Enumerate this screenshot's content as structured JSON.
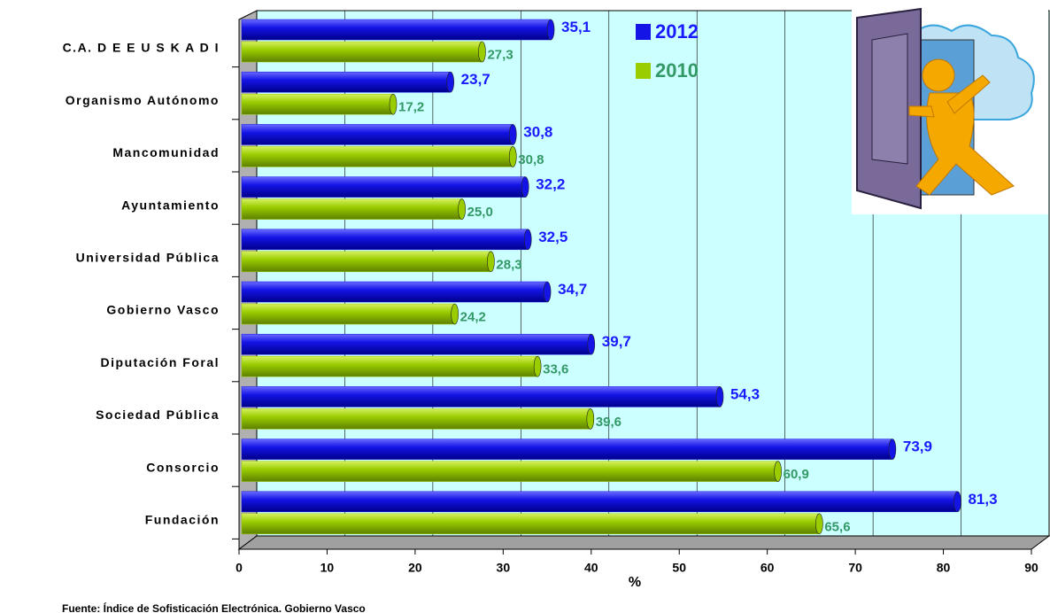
{
  "chart_data": {
    "type": "bar",
    "orientation": "horizontal",
    "categories": [
      "C.A. D E  E U S K A D I",
      "Organismo Autónomo",
      "Mancomunidad",
      "Ayuntamiento",
      "Universidad Pública",
      "Gobierno Vasco",
      "Diputación Foral",
      "Sociedad Pública",
      "Consorcio",
      "Fundación"
    ],
    "series": [
      {
        "name": "2012",
        "color": "#1414e6",
        "label_color": "#1a1aff",
        "values": [
          35.1,
          23.7,
          30.8,
          32.2,
          32.5,
          34.7,
          39.7,
          54.3,
          73.9,
          81.3
        ],
        "value_labels": [
          "35,1",
          "23,7",
          "30,8",
          "32,2",
          "32,5",
          "34,7",
          "39,7",
          "54,3",
          "73,9",
          "81,3"
        ]
      },
      {
        "name": "2010",
        "color": "#9acd00",
        "label_color": "#339966",
        "values": [
          27.3,
          17.2,
          30.8,
          25.0,
          28.3,
          24.2,
          33.6,
          39.6,
          60.9,
          65.6
        ],
        "value_labels": [
          "27,3",
          "17,2",
          "30,8",
          "25,0",
          "28,3",
          "24,2",
          "33,6",
          "39,6",
          "60,9",
          "65,6"
        ]
      }
    ],
    "xlim": [
      0,
      90
    ],
    "xticks": [
      0,
      10,
      20,
      30,
      40,
      50,
      60,
      70,
      80,
      90
    ],
    "grid": true,
    "xlabel": "%",
    "source": "Fuente: Índice de Sofisticación Electrónica. Gobierno Vasco"
  }
}
